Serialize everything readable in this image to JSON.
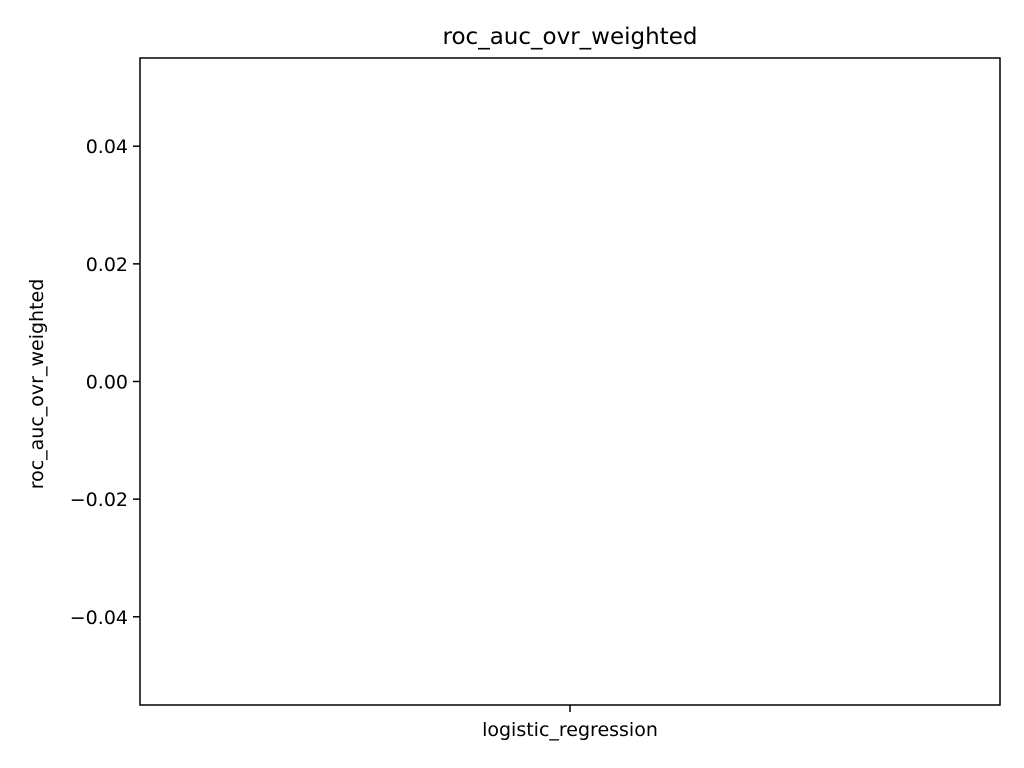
{
  "chart_data": {
    "type": "bar",
    "title": "roc_auc_ovr_weighted",
    "xlabel": "",
    "ylabel": "roc_auc_ovr_weighted",
    "categories": [
      "logistic_regression"
    ],
    "values": [
      null
    ],
    "ylim": [
      -0.055,
      0.055
    ],
    "yticks": [
      {
        "value": 0.04,
        "label": "0.04"
      },
      {
        "value": 0.02,
        "label": "0.02"
      },
      {
        "value": 0.0,
        "label": "0.00"
      },
      {
        "value": -0.02,
        "label": "−0.02"
      },
      {
        "value": -0.04,
        "label": "−0.04"
      }
    ],
    "grid": false,
    "legend": "none",
    "colors": {
      "axes": "#000000",
      "background": "#ffffff"
    }
  }
}
